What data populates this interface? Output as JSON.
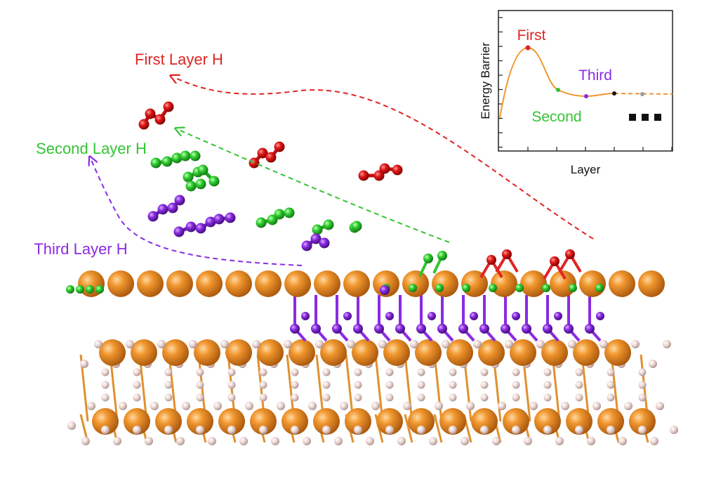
{
  "labels": {
    "first_layer": "First Layer H",
    "second_layer": "Second Layer H",
    "third_layer": "Third Layer H"
  },
  "inset": {
    "y_label": "Energy Barrier",
    "x_label": "Layer",
    "first": "First",
    "second": "Second",
    "third": "Third"
  }
}
